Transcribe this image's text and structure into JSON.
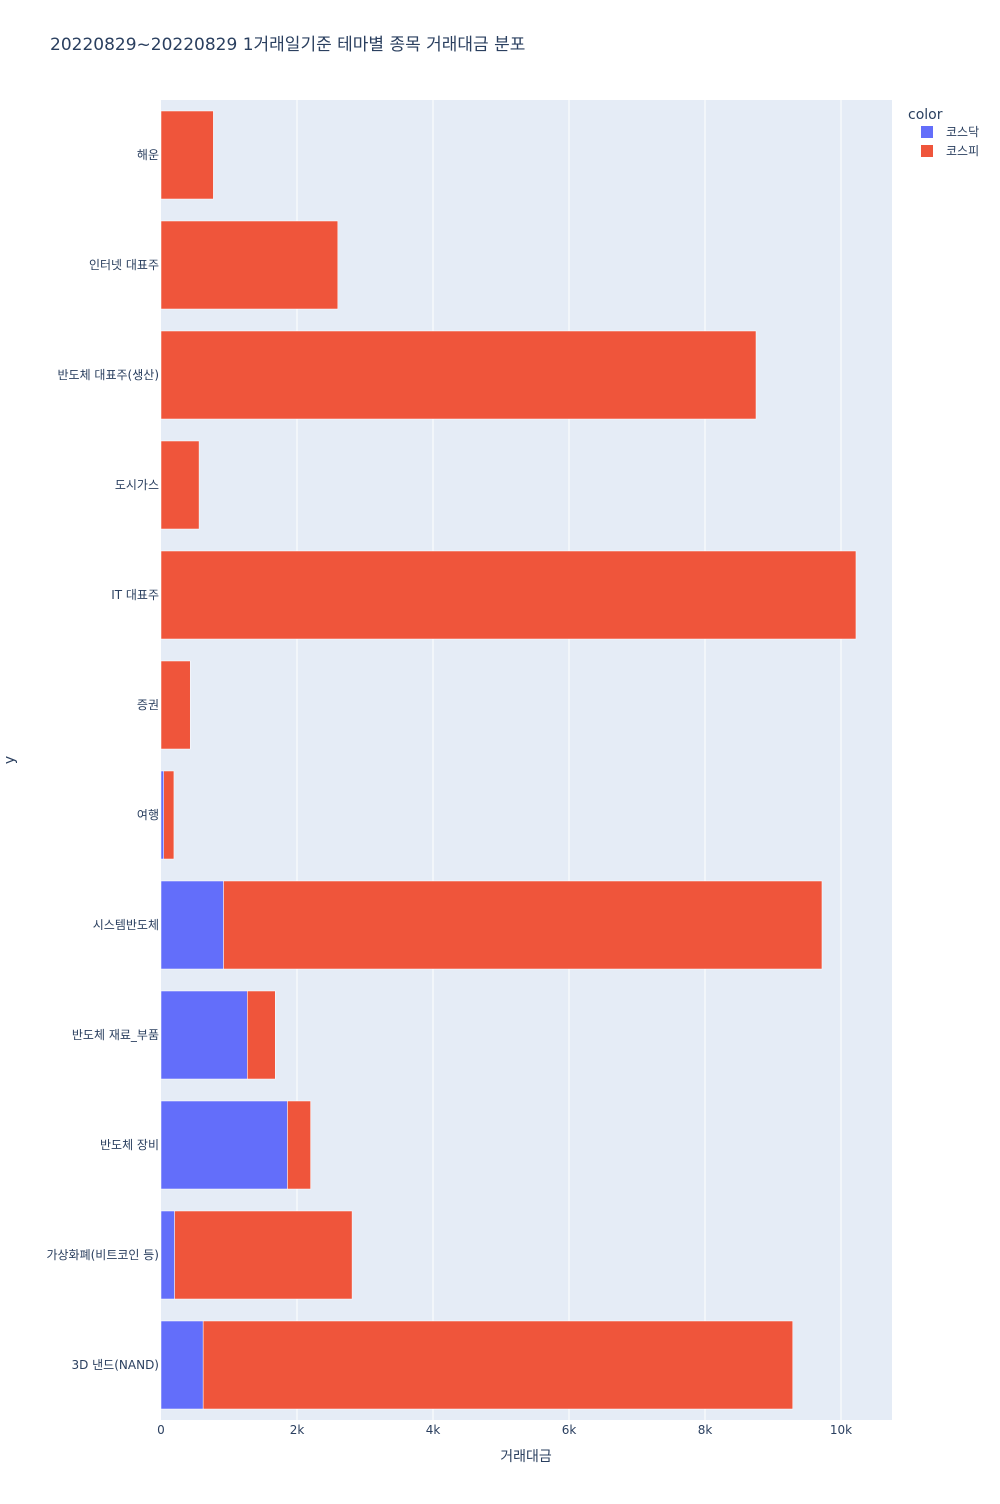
{
  "chart_data": {
    "type": "bar",
    "orientation": "horizontal",
    "barmode": "stack",
    "title": "20220829~20220829 1거래일기준 테마별 종목 거래대금 분포",
    "xlabel": "거래대금",
    "ylabel": "y",
    "xlim": [
      0,
      10750
    ],
    "xticks": [
      0,
      2000,
      4000,
      6000,
      8000,
      10000
    ],
    "xtick_labels": [
      "0",
      "2k",
      "4k",
      "6k",
      "8k",
      "10k"
    ],
    "grid": true,
    "legend_title": "color",
    "legend_position": "top-right",
    "categories": [
      "3D 낸드(NAND)",
      "가상화폐(비트코인 등)",
      "반도체 장비",
      "반도체 재료_부품",
      "시스템반도체",
      "여행",
      "증권",
      "IT 대표주",
      "도시가스",
      "반도체 대표주(생산)",
      "인터넷 대표주",
      "해운"
    ],
    "series": [
      {
        "name": "코스닥",
        "color": "#636efa",
        "values": [
          620,
          200,
          1860,
          1270,
          920,
          40,
          0,
          0,
          0,
          0,
          0,
          0
        ]
      },
      {
        "name": "코스피",
        "color": "#ef553b",
        "values": [
          8670,
          2610,
          340,
          410,
          8800,
          150,
          430,
          10220,
          560,
          8750,
          2600,
          770
        ]
      }
    ]
  }
}
